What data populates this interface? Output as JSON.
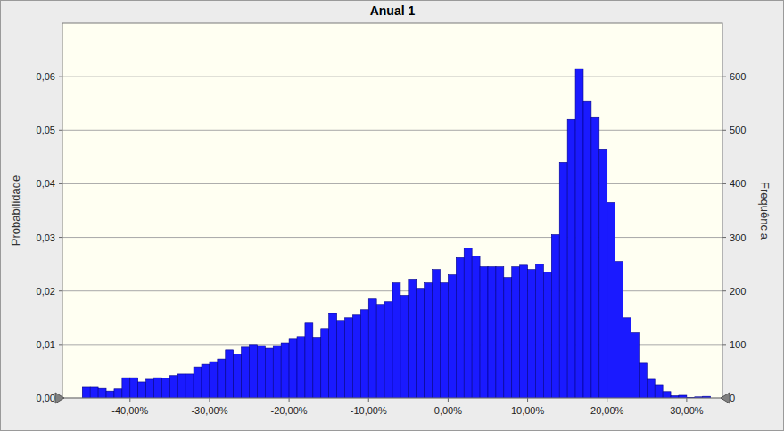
{
  "chart_data": {
    "type": "histogram",
    "title": "Anual 1",
    "y_label": "Probabilidade",
    "y2_label": "Frequência",
    "bins": [
      -46,
      -45,
      -44,
      -43,
      -42,
      -41,
      -40,
      -39,
      -38,
      -37,
      -36,
      -35,
      -34,
      -33,
      -32,
      -31,
      -30,
      -29,
      -28,
      -27,
      -26,
      -25,
      -24,
      -23,
      -22,
      -21,
      -20,
      -19,
      -18,
      -17,
      -16,
      -15,
      -14,
      -13,
      -12,
      -11,
      -10,
      -9,
      -8,
      -7,
      -6,
      -5,
      -4,
      -3,
      -2,
      -1,
      0,
      1,
      2,
      3,
      4,
      5,
      6,
      7,
      8,
      9,
      10,
      11,
      12,
      13,
      14,
      15,
      16,
      17,
      18,
      19,
      20,
      21,
      22,
      23,
      24,
      25,
      26,
      27,
      28,
      29,
      30,
      31,
      32,
      33
    ],
    "values": [
      0.002,
      0.002,
      0.0018,
      0.0013,
      0.0017,
      0.0038,
      0.0038,
      0.003,
      0.0035,
      0.0038,
      0.0037,
      0.0042,
      0.0045,
      0.0045,
      0.0058,
      0.0063,
      0.0068,
      0.0073,
      0.009,
      0.0082,
      0.0095,
      0.01,
      0.0098,
      0.0093,
      0.0098,
      0.0103,
      0.011,
      0.0115,
      0.014,
      0.0112,
      0.013,
      0.0158,
      0.0145,
      0.015,
      0.0155,
      0.0165,
      0.0185,
      0.0175,
      0.018,
      0.0215,
      0.0192,
      0.0222,
      0.0205,
      0.0215,
      0.024,
      0.0215,
      0.023,
      0.0262,
      0.028,
      0.0265,
      0.0245,
      0.0245,
      0.0245,
      0.0225,
      0.0245,
      0.0248,
      0.024,
      0.025,
      0.0235,
      0.0305,
      0.044,
      0.052,
      0.0615,
      0.0555,
      0.0525,
      0.0465,
      0.0365,
      0.0255,
      0.015,
      0.0122,
      0.0065,
      0.0035,
      0.0025,
      0.0012,
      0.0004,
      0.0005,
      0.0001,
      0.0002,
      0.0003
    ],
    "color": "#1a1aff",
    "xlim": [
      -48.5,
      34.5
    ],
    "xticks": [
      {
        "value": -40,
        "label": "-40,00%"
      },
      {
        "value": -30,
        "label": "-30,00%"
      },
      {
        "value": -20,
        "label": "-20,00%"
      },
      {
        "value": -10,
        "label": "-10,00%"
      },
      {
        "value": 0,
        "label": "0,00%"
      },
      {
        "value": 10,
        "label": "10,00%"
      },
      {
        "value": 20,
        "label": "20,00%"
      },
      {
        "value": 30,
        "label": "30,00%"
      }
    ],
    "ylim": [
      0,
      0.07
    ],
    "yticks": [
      {
        "value": 0,
        "label": "0,00"
      },
      {
        "value": 0.01,
        "label": "0,01"
      },
      {
        "value": 0.02,
        "label": "0,02"
      },
      {
        "value": 0.03,
        "label": "0,03"
      },
      {
        "value": 0.04,
        "label": "0,04"
      },
      {
        "value": 0.05,
        "label": "0,05"
      },
      {
        "value": 0.06,
        "label": "0,06"
      }
    ],
    "y2lim": [
      0,
      700
    ],
    "y2ticks": [
      0,
      100,
      200,
      300,
      400,
      500,
      600
    ],
    "grid": true
  }
}
